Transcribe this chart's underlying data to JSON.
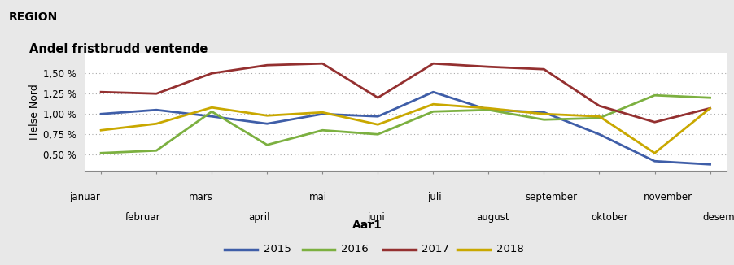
{
  "months": [
    "januar",
    "februar",
    "mars",
    "april",
    "mai",
    "juni",
    "juli",
    "august",
    "september",
    "oktober",
    "november",
    "desember"
  ],
  "series": {
    "2015": [
      1.0,
      1.05,
      0.97,
      0.88,
      1.0,
      0.97,
      1.27,
      1.05,
      1.02,
      0.75,
      0.42,
      0.38
    ],
    "2016": [
      0.52,
      0.55,
      1.03,
      0.62,
      0.8,
      0.75,
      1.03,
      1.05,
      0.93,
      0.95,
      1.23,
      1.2
    ],
    "2017": [
      1.27,
      1.25,
      1.5,
      1.6,
      1.62,
      1.2,
      1.62,
      1.58,
      1.55,
      1.1,
      0.9,
      1.07
    ],
    "2018": [
      0.8,
      0.88,
      1.08,
      0.98,
      1.02,
      0.87,
      1.12,
      1.07,
      1.0,
      0.97,
      0.52,
      1.07
    ]
  },
  "colors": {
    "2015": "#3F5EA8",
    "2016": "#7CB040",
    "2017": "#943030",
    "2018": "#C9A800"
  },
  "title": "Andel fristbrudd ventende",
  "region_label": "REGION",
  "ylabel": "Helse Nord",
  "legend_title": "Aar1",
  "ylim": [
    0.3,
    1.75
  ],
  "yticks": [
    0.5,
    0.75,
    1.0,
    1.25,
    1.5
  ],
  "ytick_labels": [
    "0,50 %",
    "0,75 %",
    "1,00 %",
    "1,25 %",
    "1,50 %"
  ],
  "plot_bg_color": "#FFFFFF",
  "header_bg_color": "#C8C8C8",
  "fig_bg_color": "#E8E8E8",
  "linewidth": 2.0,
  "legend_years": [
    "2015",
    "2016",
    "2017",
    "2018"
  ]
}
